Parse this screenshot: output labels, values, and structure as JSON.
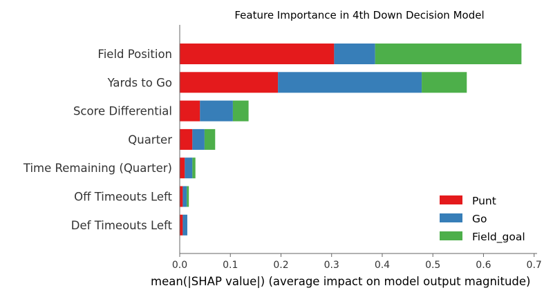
{
  "chart_data": {
    "type": "bar",
    "orientation": "horizontal",
    "stacked": true,
    "title": "Feature Importance in 4th Down Decision Model",
    "xlabel": "mean(|SHAP value|) (average impact on model output magnitude)",
    "ylabel": "",
    "xlim": [
      0,
      0.7
    ],
    "xticks": [
      "0.0",
      "0.1",
      "0.2",
      "0.3",
      "0.4",
      "0.5",
      "0.6",
      "0.7"
    ],
    "grid": false,
    "legend_position": "lower-right",
    "categories": [
      "Field Position",
      "Yards to Go",
      "Score Differential",
      "Quarter",
      "Time Remaining (Quarter)",
      "Off Timeouts Left",
      "Def Timeouts Left"
    ],
    "series": [
      {
        "name": "Punt",
        "color": "#e41a1c",
        "values": [
          0.305,
          0.194,
          0.04,
          0.025,
          0.01,
          0.006,
          0.006
        ]
      },
      {
        "name": "Go",
        "color": "#377eb8",
        "values": [
          0.081,
          0.284,
          0.065,
          0.024,
          0.015,
          0.008,
          0.009
        ]
      },
      {
        "name": "Field_goal",
        "color": "#4daf4a",
        "values": [
          0.289,
          0.089,
          0.031,
          0.021,
          0.006,
          0.004,
          0.0
        ]
      }
    ]
  }
}
